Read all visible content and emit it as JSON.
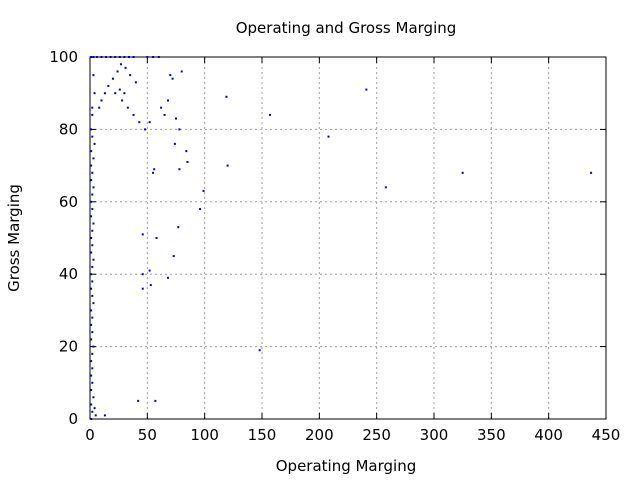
{
  "chart_data": {
    "type": "scatter",
    "title": "Operating and Gross Marging",
    "xlabel": "Operating Marging",
    "ylabel": "Gross Marging",
    "xlim": [
      0,
      450
    ],
    "ylim": [
      0,
      100
    ],
    "x_ticks": [
      0,
      50,
      100,
      150,
      200,
      250,
      300,
      350,
      400,
      450
    ],
    "y_ticks": [
      0,
      20,
      40,
      60,
      80,
      100
    ],
    "grid": true,
    "legend": "none",
    "point_color": "#0000cc",
    "series": [
      {
        "values": [
          [
            1,
            100
          ],
          [
            3,
            100
          ],
          [
            6,
            100
          ],
          [
            10,
            100
          ],
          [
            14,
            100
          ],
          [
            18,
            100
          ],
          [
            22,
            100
          ],
          [
            26,
            100
          ],
          [
            30,
            100
          ],
          [
            34,
            100
          ],
          [
            38,
            100
          ],
          [
            50,
            100
          ],
          [
            55,
            100
          ],
          [
            60,
            100
          ],
          [
            3,
            95
          ],
          [
            4,
            90
          ],
          [
            2,
            86
          ],
          [
            2,
            84
          ],
          [
            1,
            80
          ],
          [
            2,
            78
          ],
          [
            4,
            76
          ],
          [
            1,
            74
          ],
          [
            3,
            72
          ],
          [
            1,
            70
          ],
          [
            2,
            68
          ],
          [
            1,
            66
          ],
          [
            3,
            64
          ],
          [
            2,
            62
          ],
          [
            1,
            60
          ],
          [
            2,
            58
          ],
          [
            1,
            56
          ],
          [
            3,
            54
          ],
          [
            2,
            52
          ],
          [
            1,
            50
          ],
          [
            2,
            48
          ],
          [
            1,
            46
          ],
          [
            3,
            44
          ],
          [
            2,
            42
          ],
          [
            1,
            40
          ],
          [
            2,
            38
          ],
          [
            1,
            36
          ],
          [
            2,
            34
          ],
          [
            3,
            32
          ],
          [
            1,
            30
          ],
          [
            2,
            28
          ],
          [
            1,
            26
          ],
          [
            2,
            24
          ],
          [
            1,
            22
          ],
          [
            3,
            20
          ],
          [
            2,
            18
          ],
          [
            1,
            16
          ],
          [
            2,
            14
          ],
          [
            1,
            12
          ],
          [
            2,
            10
          ],
          [
            1,
            8
          ],
          [
            3,
            6
          ],
          [
            1,
            4
          ],
          [
            2,
            2
          ],
          [
            1,
            0
          ],
          [
            4,
            3
          ],
          [
            5,
            1
          ],
          [
            8,
            86
          ],
          [
            10,
            88
          ],
          [
            13,
            90
          ],
          [
            16,
            92
          ],
          [
            20,
            94
          ],
          [
            24,
            96
          ],
          [
            27,
            98
          ],
          [
            31,
            97
          ],
          [
            35,
            95
          ],
          [
            40,
            93
          ],
          [
            22,
            90
          ],
          [
            26,
            91
          ],
          [
            30,
            90
          ],
          [
            28,
            88
          ],
          [
            33,
            86
          ],
          [
            38,
            84
          ],
          [
            43,
            82
          ],
          [
            48,
            80
          ],
          [
            52,
            82
          ],
          [
            62,
            86
          ],
          [
            65,
            84
          ],
          [
            70,
            95
          ],
          [
            72,
            94
          ],
          [
            80,
            96
          ],
          [
            68,
            88
          ],
          [
            75,
            83
          ],
          [
            78,
            80
          ],
          [
            84,
            74
          ],
          [
            74,
            76
          ],
          [
            56,
            69
          ],
          [
            55,
            68
          ],
          [
            78,
            69
          ],
          [
            85,
            71
          ],
          [
            99,
            63
          ],
          [
            96,
            58
          ],
          [
            77,
            53
          ],
          [
            58,
            50
          ],
          [
            46,
            51
          ],
          [
            46,
            40
          ],
          [
            46,
            36
          ],
          [
            52,
            41
          ],
          [
            53,
            37
          ],
          [
            68,
            39
          ],
          [
            73,
            45
          ],
          [
            42,
            5
          ],
          [
            57,
            5
          ],
          [
            13,
            1
          ],
          [
            148,
            19
          ],
          [
            119,
            89
          ],
          [
            157,
            84
          ],
          [
            208,
            78
          ],
          [
            241,
            91
          ],
          [
            120,
            70
          ],
          [
            258,
            64
          ],
          [
            325,
            68
          ],
          [
            437,
            68
          ]
        ]
      }
    ]
  }
}
